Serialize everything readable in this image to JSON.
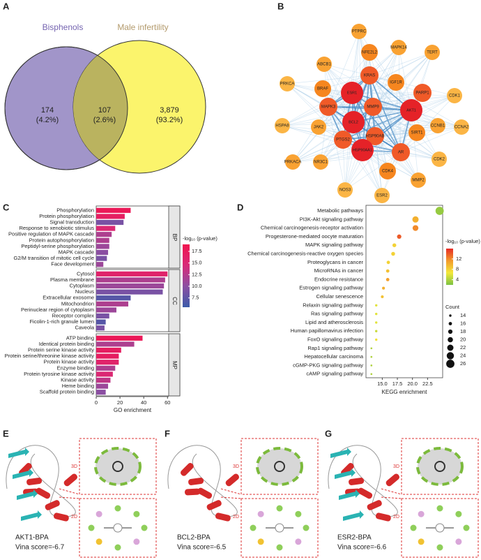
{
  "panel_labels": [
    "A",
    "B",
    "C",
    "D",
    "E",
    "F",
    "G"
  ],
  "venn": {
    "sets": [
      "Bisphenols",
      "Male infertility"
    ],
    "regions": [
      {
        "count": "174",
        "percent": "(4.2%)"
      },
      {
        "count": "107",
        "percent": "(2.6%)"
      },
      {
        "count": "3,879",
        "percent": "(93.2%)"
      }
    ]
  },
  "network": {
    "nodes": [
      "PTPRC",
      "MAPK14",
      "NFE2L2",
      "TERT",
      "ABCB1",
      "IGF1R",
      "KRAS",
      "PRKCA",
      "CDK1",
      "PARP1",
      "BRAF",
      "ESR1",
      "MAPK3",
      "MMP9",
      "AKT1",
      "CCNB1",
      "BCL2",
      "HSPA8",
      "JAK2",
      "SIRT1",
      "CCNA2",
      "HSP90AB",
      "PTGS2",
      "HSP90AA1",
      "AR",
      "PRKACA",
      "NR3C1",
      "CDK2",
      "CDK4",
      "MMP2",
      "NOS3",
      "ESR2"
    ]
  },
  "chart_data": [
    {
      "type": "bar",
      "xlabel": "GO enrichment",
      "xlim": [
        0,
        61
      ],
      "xticks": [
        0,
        20,
        40,
        60
      ],
      "groups": [
        {
          "name": "BP",
          "categories": [
            "Phosphorylation",
            "Protein phosphorylation",
            "Signal transduction",
            "Response to xenobiotic stimulus",
            "Positive regulation of MAPK cascade",
            "Protein autophosphorylation",
            "Peptidyl-serine phosphorylation",
            "MAPK cascade",
            "G2/M transition of mitotic cell cycle",
            "Face development"
          ],
          "values": [
            29,
            24,
            23,
            16,
            13,
            11,
            11,
            10,
            9,
            6
          ],
          "color_values": [
            18,
            17,
            9,
            15,
            12,
            12,
            11,
            10,
            9,
            11
          ]
        },
        {
          "name": "CC",
          "categories": [
            "Cytosol",
            "Plasma membrane",
            "Cytoplasm",
            "Nucleus",
            "Extracellular exosome",
            "Mitochondrion",
            "Perinuclear region of cytoplasm",
            "Receptor complex",
            "Ficolin-1-rich granule lumen",
            "Caveola"
          ],
          "values": [
            60,
            58,
            57,
            56,
            29,
            27,
            17,
            11,
            8,
            7
          ],
          "color_values": [
            16,
            12,
            11,
            9,
            7,
            12,
            11,
            9,
            7,
            9
          ]
        },
        {
          "name": "MP",
          "categories": [
            "ATP binding",
            "Identical protein binding",
            "Protein serine kinase activity",
            "Protein serine/threonine kinase activity",
            "Protein kinase activity",
            "Enzyme binding",
            "Protein tyrosine kinase activity",
            "Kinase activity",
            "Heme binding",
            "Scaffold protein binding"
          ],
          "values": [
            39,
            32,
            21,
            19,
            19,
            16,
            14,
            12,
            10,
            8
          ],
          "color_values": [
            18,
            12,
            17,
            17,
            16,
            12,
            15,
            13,
            11,
            10
          ]
        }
      ],
      "colorbar": {
        "title": "-log₁₀ (p-value)",
        "lim": [
          5.5,
          19
        ],
        "colors": [
          "#3b5ba9",
          "#8b4fa2",
          "#d82a78",
          "#f0144f"
        ],
        "ticks": [
          7.5,
          {
            "value": 10,
            "label": "10.0"
          },
          12.5,
          {
            "value": 15,
            "label": "15.0"
          },
          17.5
        ]
      }
    },
    {
      "type": "scatter",
      "xlabel": "KEGG enrichment",
      "xlim": [
        12.3,
        25
      ],
      "xticks": [
        {
          "value": 15,
          "label": "15.0"
        },
        17.5,
        {
          "value": 20,
          "label": "20.0"
        },
        22.5
      ],
      "categories": [
        "Metabolic pathways",
        "PI3K-Akt signaling pathway",
        "Chemical carcinogenesis-receptor activation",
        "Progesterone-mediated oocyte maturation",
        "MAPK signaling pathway",
        "Chemical carcinogenesis-reactive oxygen species",
        "Proteoglycans in cancer",
        "MicroRNAs in cancer",
        "Endocrine resistance",
        "Estrogen signaling pathway",
        "Cellular senescence",
        "Relaxin signaling pathway",
        "Ras signaling pathway",
        "Lipid and atherosclerosis",
        "Human papillomavirus infection",
        "FoxO signaling pathway",
        "Rap1 signaling pathway",
        "Hepatocellular carcinoma",
        "cGMP-PKG signaling pathway",
        "cAMP signaling pathway"
      ],
      "values": [
        24.5,
        20.5,
        20.5,
        17.8,
        17,
        16.8,
        16,
        15.9,
        15.9,
        15.2,
        15,
        14,
        14,
        14,
        14,
        14,
        13.2,
        13.2,
        13.2,
        13.2
      ],
      "sizes": [
        26,
        22,
        21,
        18,
        17,
        17,
        16,
        16,
        16,
        15,
        15,
        14,
        14,
        14,
        14,
        14,
        13,
        13,
        13,
        13
      ],
      "color_values": [
        3,
        10,
        12,
        14,
        8,
        8,
        8,
        9,
        11,
        10,
        9,
        6,
        6,
        6,
        5,
        7,
        4,
        4,
        4,
        4
      ],
      "colorbar": {
        "title": "-log₁₀ (p-value)",
        "lim": [
          2,
          16
        ],
        "colors": [
          "#7cc243",
          "#f3e83a",
          "#f39a2b",
          "#e62a25"
        ],
        "ticks": [
          4,
          8,
          12
        ]
      },
      "size_legend": {
        "title": "Count",
        "values": [
          14,
          16,
          18,
          20,
          22,
          24,
          26
        ]
      }
    }
  ],
  "docking": [
    {
      "label": "AKT1-BPA",
      "score": "Vina score=-6.7",
      "view_3d": "3D",
      "view_2d": "2D"
    },
    {
      "label": "BCL2-BPA",
      "score": "Vina score=-6.5",
      "view_3d": "3D",
      "view_2d": "2D"
    },
    {
      "label": "ESR2-BPA",
      "score": "Vina score=-6.6",
      "view_3d": "3D",
      "view_2d": "2D"
    }
  ]
}
